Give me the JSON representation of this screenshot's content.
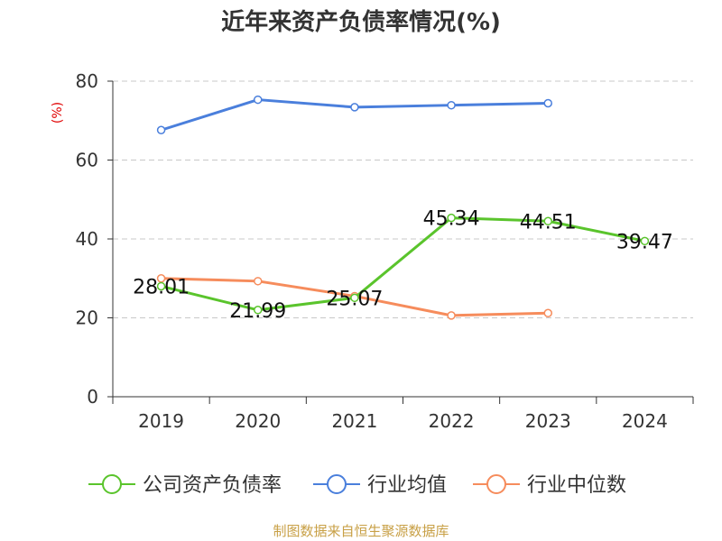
{
  "title": "近年来资产负债率情况(%)",
  "source": "制图数据来自恒生聚源数据库",
  "chart_data": {
    "type": "line",
    "title": "近年来资产负债率情况(%)",
    "ylabel": "(%)",
    "ylim": [
      0,
      80
    ],
    "yticks": [
      0,
      20,
      40,
      60,
      80
    ],
    "grid": true,
    "legend_position": "bottom",
    "categories": [
      "2019",
      "2020",
      "2021",
      "2022",
      "2023",
      "2024"
    ],
    "series": [
      {
        "name": "公司资产负债率",
        "color": "#5ac42c",
        "values": [
          28.01,
          21.99,
          25.07,
          45.34,
          44.51,
          39.47
        ],
        "show_labels": true
      },
      {
        "name": "行业均值",
        "color": "#4a7fdc",
        "values": [
          67.6,
          75.3,
          73.4,
          73.9,
          74.4,
          null
        ],
        "show_labels": false
      },
      {
        "name": "行业中位数",
        "color": "#f68c5c",
        "values": [
          30.0,
          29.3,
          25.5,
          20.6,
          21.2,
          null
        ],
        "show_labels": false
      }
    ]
  }
}
